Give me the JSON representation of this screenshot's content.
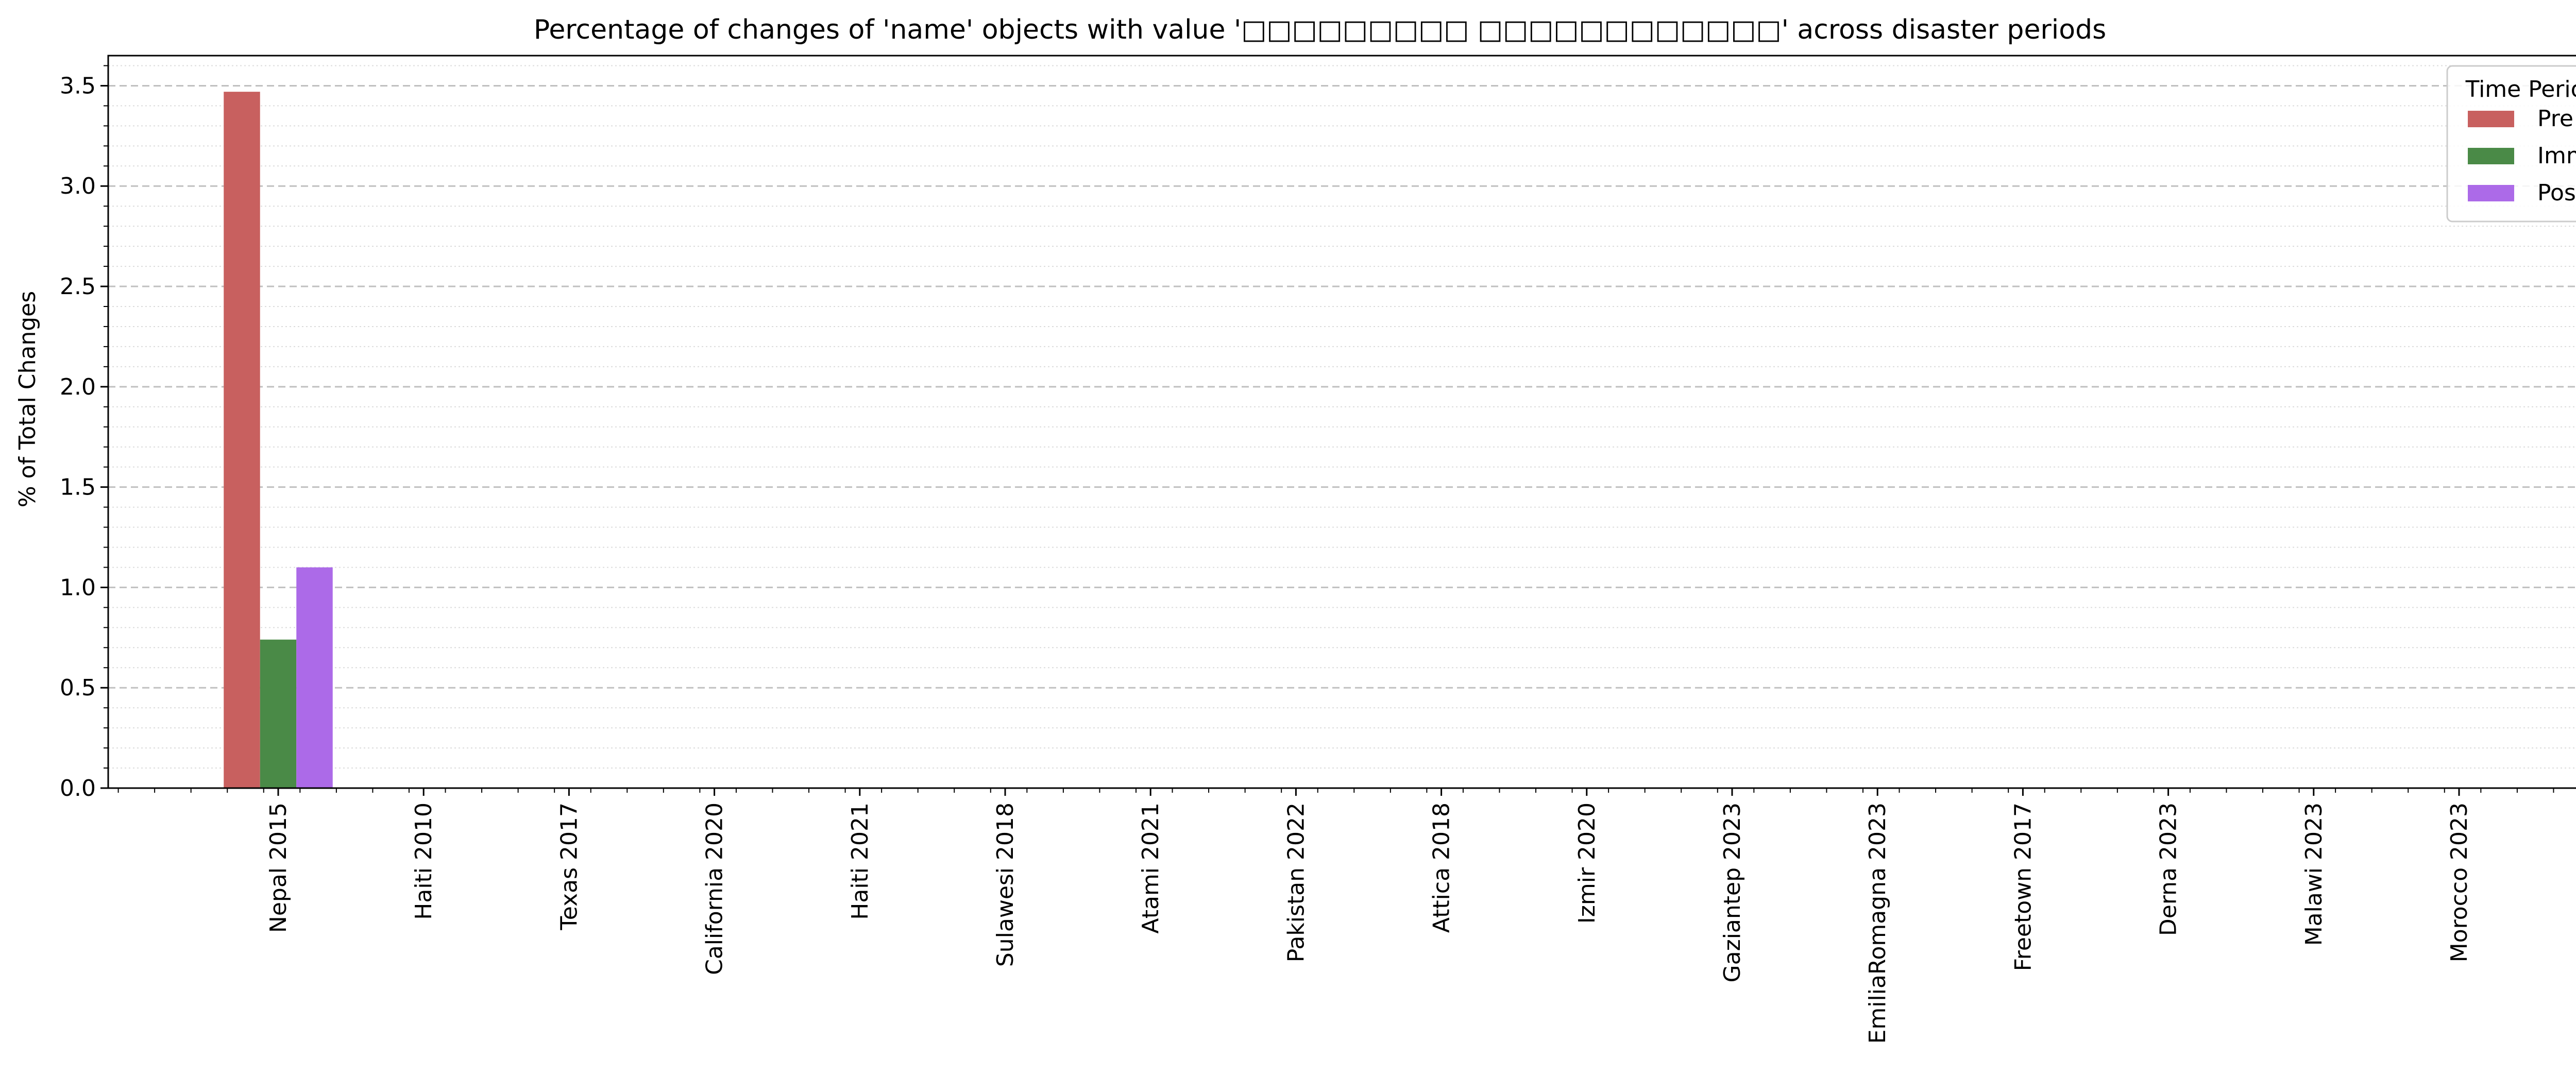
{
  "chart_data": {
    "type": "bar",
    "title": "Percentage of changes of 'name' objects with value '□□□□□□□□□ □□□□□□□□□□□□' across disaster periods",
    "xlabel": "",
    "ylabel": "% of Total Changes",
    "ylim": [
      0,
      3.65
    ],
    "yticks": [
      "0.0",
      "0.5",
      "1.0",
      "1.5",
      "2.0",
      "2.5",
      "3.0",
      "3.5"
    ],
    "grid": "y-major dashed, y-minor dotted",
    "legend_title": "Time Period",
    "legend_position": "top-right",
    "categories": [
      "Nepal 2015",
      "Haiti 2010",
      "Texas 2017",
      "California 2020",
      "Haiti 2021",
      "Sulawesi 2018",
      "Atami 2021",
      "Pakistan 2022",
      "Attica 2018",
      "Izmir 2020",
      "Gaziantep 2023",
      "EmiliaRomagna 2023",
      "Freetown 2017",
      "Derna 2023",
      "Malawi 2023",
      "Morocco 2023"
    ],
    "series": [
      {
        "name": "Pre",
        "color": "#c8605f",
        "values": [
          3.47,
          0,
          0,
          0,
          0,
          0,
          0,
          0,
          0,
          0,
          0,
          0,
          0,
          0,
          0,
          0
        ]
      },
      {
        "name": "Imm",
        "color": "#4a8a47",
        "values": [
          0.74,
          0,
          0,
          0,
          0,
          0,
          0,
          0,
          0,
          0,
          0,
          0,
          0,
          0,
          0,
          0
        ]
      },
      {
        "name": "Post",
        "color": "#ac6ae8",
        "values": [
          1.1,
          0,
          0,
          0,
          0,
          0,
          0,
          0,
          0,
          0,
          0,
          0,
          0,
          0,
          0,
          0
        ]
      }
    ]
  }
}
